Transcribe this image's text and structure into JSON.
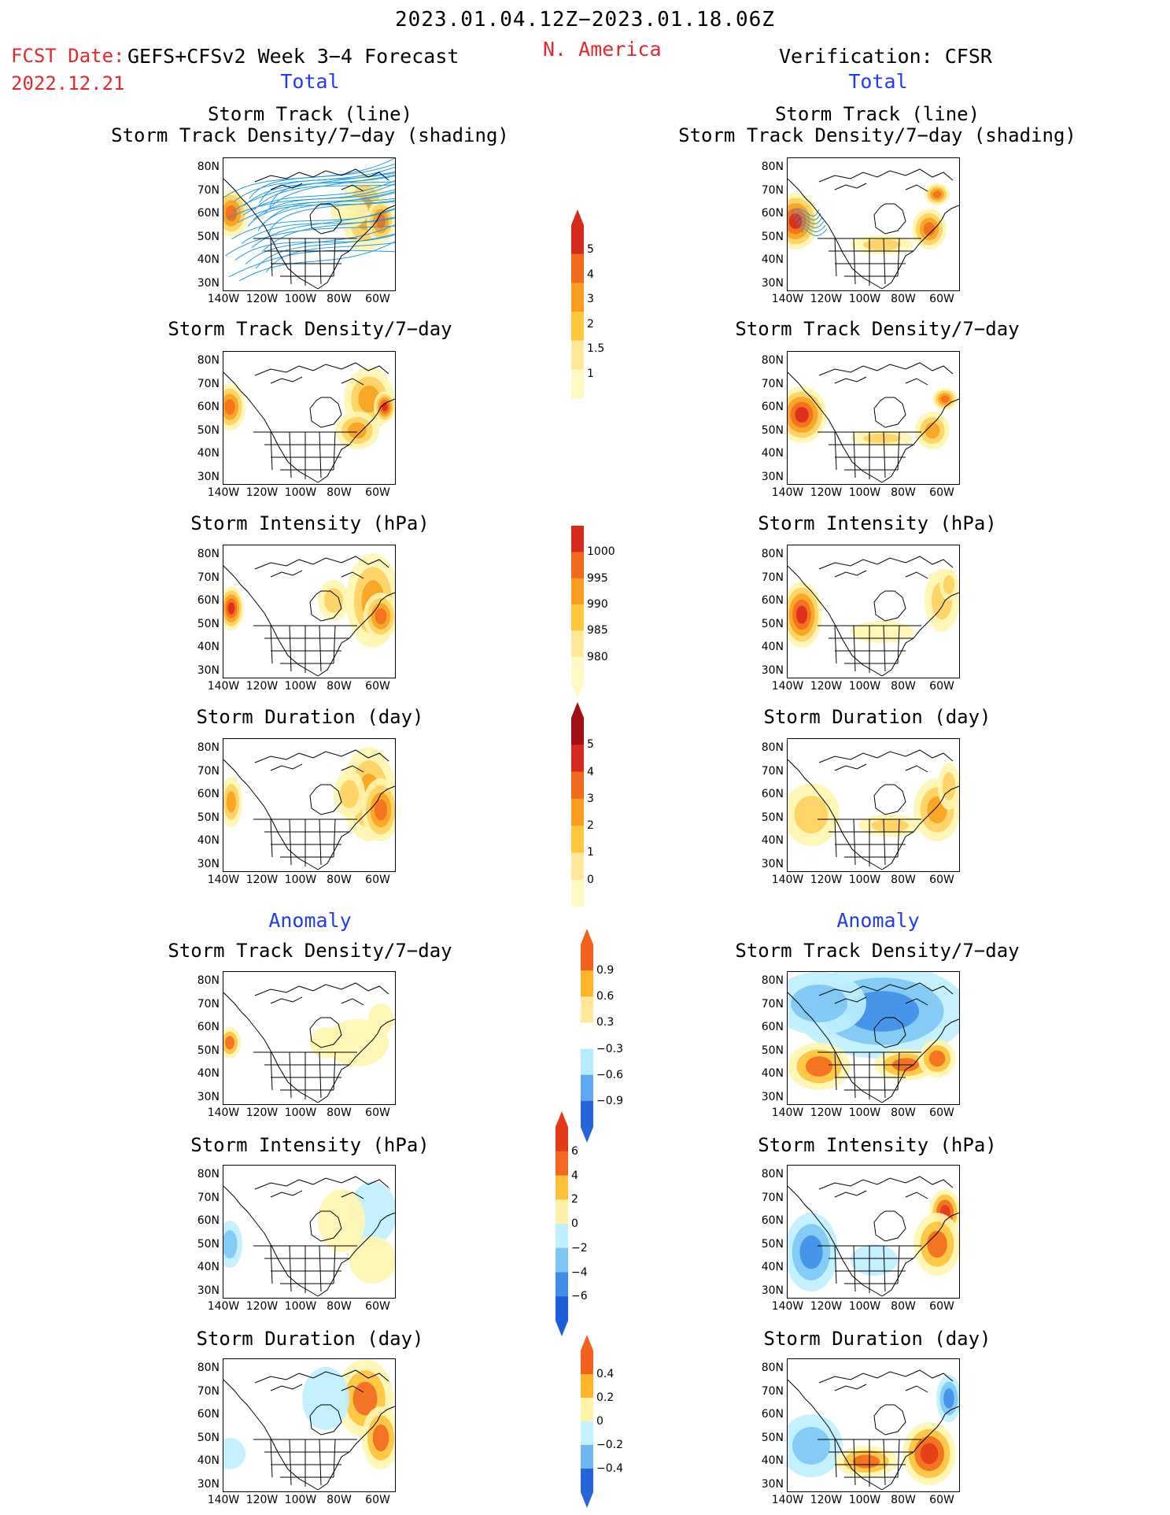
{
  "header": {
    "date_range": "2023.01.04.12Z−2023.01.18.06Z",
    "fcst_label": "FCST Date:",
    "fcst_date": "2022.12.21",
    "model": "GEFS+CFSv2 Week 3−4 Forecast",
    "region": "N. America",
    "verification": "Verification: CFSR"
  },
  "sections": {
    "total": "Total",
    "anomaly": "Anomaly"
  },
  "panel_titles": {
    "track_line": "Storm Track (line)",
    "track_shading": "Storm Track Density/7−day (shading)",
    "density": "Storm Track Density/7−day",
    "intensity": "Storm Intensity (hPa)",
    "duration": "Storm Duration (day)"
  },
  "axes": {
    "lat_labels": [
      "80N",
      "70N",
      "60N",
      "50N",
      "40N",
      "30N"
    ],
    "lon_labels": [
      "140W",
      "120W",
      "100W",
      "80W",
      "60W"
    ]
  },
  "colorbars": {
    "density_total": [
      "5",
      "4",
      "3",
      "2",
      "1.5",
      "1"
    ],
    "intensity_total": [
      "1000",
      "995",
      "990",
      "985",
      "980"
    ],
    "duration_total": [
      "5",
      "4",
      "3",
      "2",
      "1",
      "0"
    ],
    "density_anom": [
      "0.9",
      "0.6",
      "0.3",
      "−0.3",
      "−0.6",
      "−0.9"
    ],
    "intensity_anom": [
      "6",
      "4",
      "2",
      "0",
      "−2",
      "−4",
      "−6"
    ],
    "duration_anom": [
      "0.4",
      "0.2",
      "0",
      "−0.2",
      "−0.4"
    ]
  },
  "colors": {
    "title_red": "#e8262b",
    "section_blue": "#1f3bff",
    "track_lines": "#1e9bf0"
  }
}
